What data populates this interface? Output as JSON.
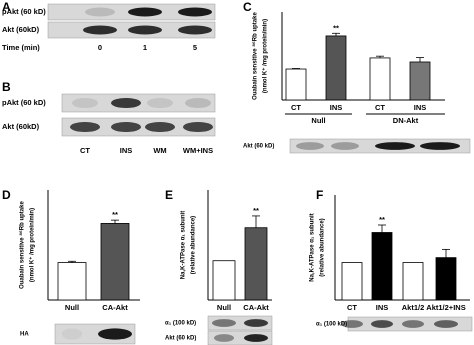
{
  "panels": {
    "A": {
      "label": "A",
      "blot_labels": [
        "pAkt (60 kD)",
        "Akt (60kD)"
      ],
      "axis_label": "Time (min)",
      "lanes": [
        "0",
        "1",
        "5"
      ]
    },
    "B": {
      "label": "B",
      "blot_labels": [
        "pAkt (60 kD)",
        "Akt (60kD)"
      ],
      "lanes": [
        "CT",
        "INS",
        "WM",
        "WM+INS"
      ]
    }
  },
  "chart_data": [
    {
      "type": "bar",
      "label": "C",
      "y_label": [
        "Ouabain sensitive ⁸⁶Rb uptake",
        "(nmol K⁺ /mg protein/min)"
      ],
      "categories": [
        "CT",
        "INS",
        "CT",
        "INS"
      ],
      "groups": [
        "Null",
        "DN-Akt"
      ],
      "values": [
        17.6,
        36.4,
        23.9,
        21.6
      ],
      "errors": [
        0.3,
        1.5,
        1,
        2.5
      ],
      "colors": [
        "#ffffff",
        "#555555",
        "#ffffff",
        "#777777"
      ],
      "significance": [
        null,
        "**",
        null,
        null
      ],
      "ylim": [
        0,
        50
      ],
      "blot_labels": [
        "Akt (60 kD)"
      ]
    },
    {
      "type": "bar",
      "label": "D",
      "y_label": [
        "Ouabain sensitive ⁸⁶Rb uptake",
        "(nmol K⁺ /mg protein/min)"
      ],
      "categories": [
        "Null",
        "CA-Akt"
      ],
      "values": [
        17,
        34.8
      ],
      "errors": [
        0.6,
        1.5
      ],
      "colors": [
        "#ffffff",
        "#555555"
      ],
      "significance": [
        null,
        "**"
      ],
      "ylim": [
        0,
        50
      ],
      "blot_labels": [
        "HA"
      ]
    },
    {
      "type": "bar",
      "label": "E",
      "y_label": [
        "Na,K-ATPase α₁ subunit",
        "(relative abundance)"
      ],
      "categories": [
        "Null",
        "CA-Akt"
      ],
      "values": [
        1,
        1.84
      ],
      "errors": [
        null,
        0.3
      ],
      "colors": [
        "#ffffff",
        "#555555"
      ],
      "significance": [
        null,
        "**"
      ],
      "ylim": [
        0,
        2.8
      ],
      "blot_labels": [
        "α₁ (100 kD)",
        "Akt (60 kD)"
      ]
    },
    {
      "type": "bar",
      "label": "F",
      "y_label": [
        "Na,K-ATPase α₁ subunit",
        "(relative abundance)"
      ],
      "categories": [
        "CT",
        "INS",
        "Akt1/2",
        "Akt1/2+INS"
      ],
      "values": [
        1,
        1.8,
        1,
        1.13
      ],
      "errors": [
        null,
        0.2,
        null,
        0.22
      ],
      "colors": [
        "#ffffff",
        "#000000",
        "#ffffff",
        "#000000"
      ],
      "significance": [
        null,
        "**",
        null,
        null
      ],
      "ylim": [
        0,
        2.8
      ],
      "blot_labels": [
        "α₁ (100 kD)"
      ]
    }
  ]
}
